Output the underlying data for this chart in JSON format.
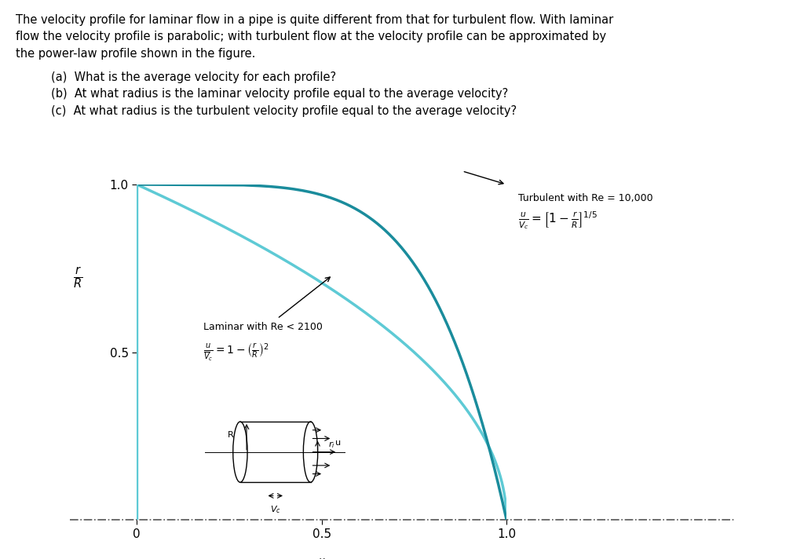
{
  "laminar_color": "#5ecad5",
  "turbulent_color": "#1a8c9c",
  "bg_color": "#ffffff",
  "text_color": "#000000",
  "xlim": [
    0,
    1.0
  ],
  "ylim": [
    0,
    1.0
  ],
  "xticks": [
    0,
    0.5,
    1.0
  ],
  "yticks": [
    0.5,
    1.0
  ],
  "title_line1": "The velocity profile for laminar flow in a pipe is quite different from that for turbulent flow. With laminar",
  "title_line2": "flow the velocity profile is parabolic; with turbulent flow at the velocity profile can be approximated by",
  "title_line3": "the power-law profile shown in the figure.",
  "qa": "(a)  What is the average velocity for each profile?",
  "qb": "(b)  At what radius is the laminar velocity profile equal to the average velocity?",
  "qc": "(c)  At what radius is the turbulent velocity profile equal to the average velocity?"
}
